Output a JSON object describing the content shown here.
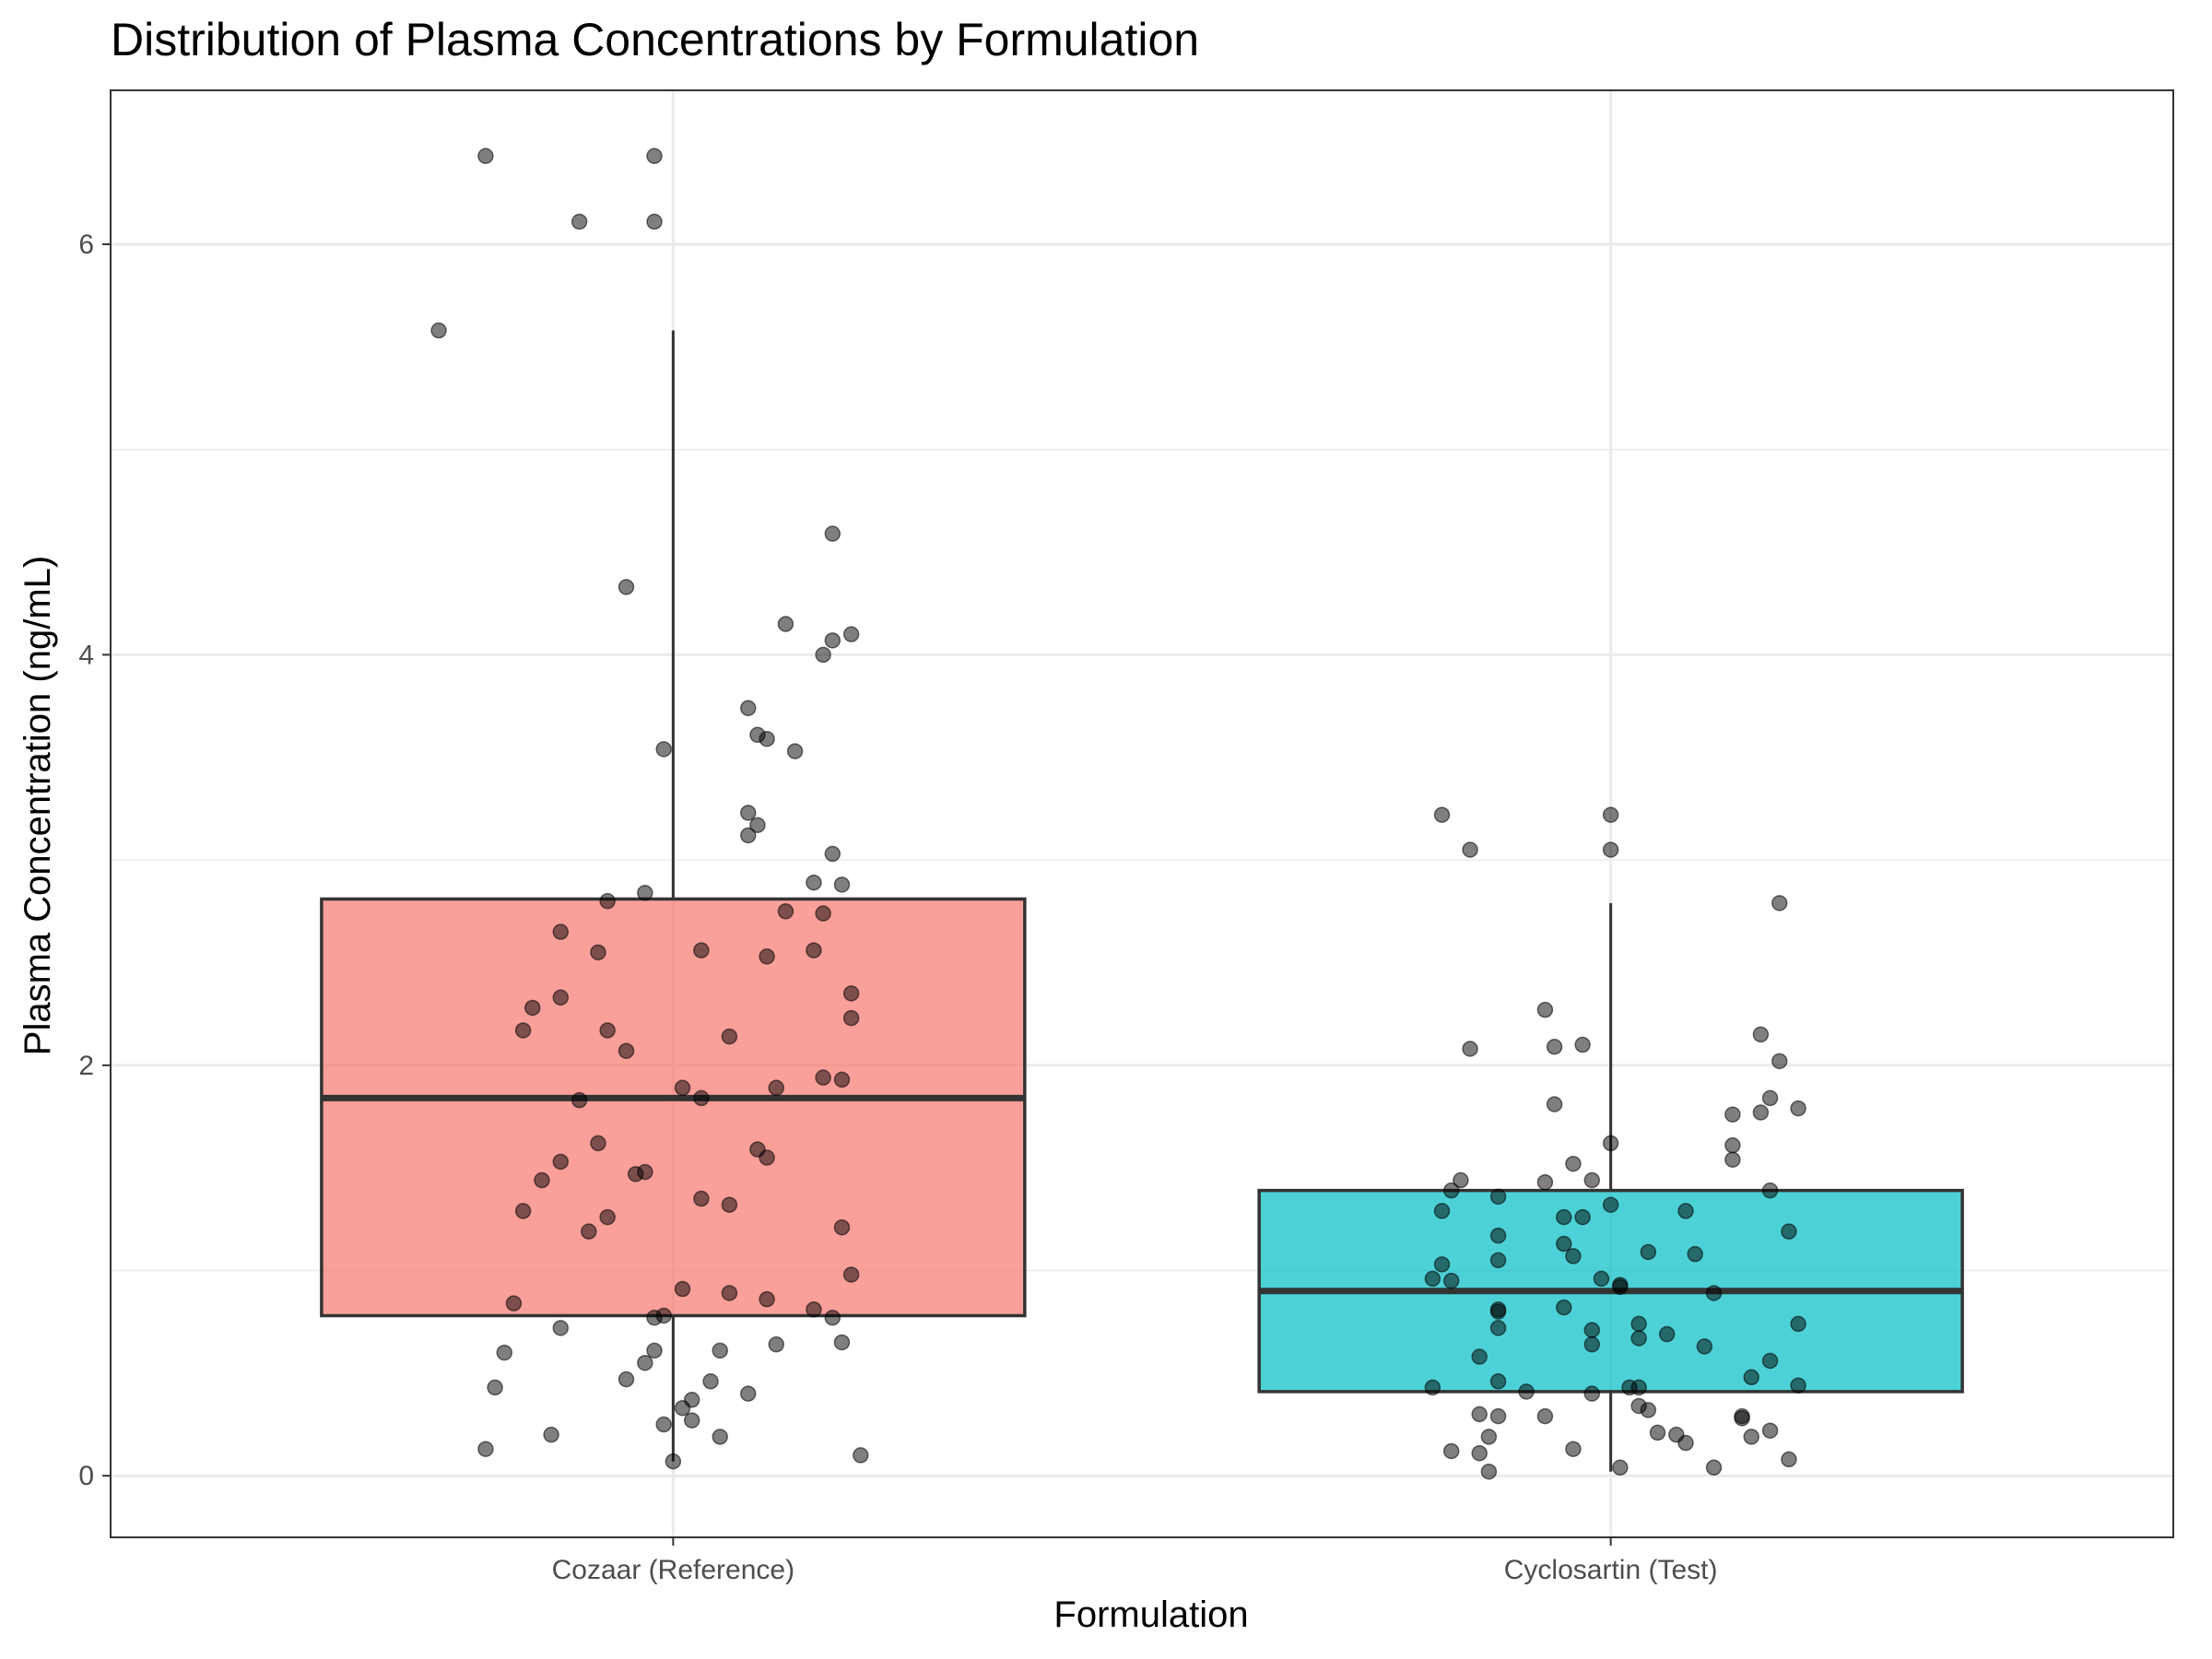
{
  "chart_data": {
    "type": "box",
    "title": "Distribution of Plasma Concentrations by Formulation",
    "xlabel": "Formulation",
    "ylabel": "Plasma Concentration (ng/mL)",
    "ylim": [
      -0.3,
      6.75
    ],
    "yticks": [
      0,
      2,
      4,
      6
    ],
    "grid": true,
    "legend": "none",
    "categories": [
      "Cozaar (Reference)",
      "Cyclosartin (Test)"
    ],
    "series": [
      {
        "color": "#F8766D",
        "q1": 0.78,
        "median": 1.84,
        "q3": 2.81,
        "whisker_low": 0.07,
        "whisker_high": 5.58,
        "points": [
          [
            -0.2,
            6.43
          ],
          [
            -0.02,
            6.43
          ],
          [
            -0.1,
            6.11
          ],
          [
            -0.02,
            6.11
          ],
          [
            -0.25,
            5.58
          ],
          [
            0.17,
            4.59
          ],
          [
            -0.05,
            4.33
          ],
          [
            0.12,
            4.15
          ],
          [
            0.19,
            4.1
          ],
          [
            0.17,
            4.07
          ],
          [
            0.16,
            4.0
          ],
          [
            0.08,
            3.74
          ],
          [
            0.09,
            3.61
          ],
          [
            0.1,
            3.59
          ],
          [
            -0.01,
            3.54
          ],
          [
            0.13,
            3.53
          ],
          [
            0.08,
            3.23
          ],
          [
            0.09,
            3.17
          ],
          [
            0.08,
            3.12
          ],
          [
            0.17,
            3.03
          ],
          [
            0.15,
            2.89
          ],
          [
            0.18,
            2.88
          ],
          [
            -0.03,
            2.84
          ],
          [
            -0.07,
            2.8
          ],
          [
            0.12,
            2.75
          ],
          [
            0.16,
            2.74
          ],
          [
            -0.12,
            2.65
          ],
          [
            0.03,
            2.56
          ],
          [
            0.15,
            2.56
          ],
          [
            -0.08,
            2.55
          ],
          [
            0.1,
            2.53
          ],
          [
            0.19,
            2.35
          ],
          [
            -0.12,
            2.33
          ],
          [
            -0.15,
            2.28
          ],
          [
            0.19,
            2.23
          ],
          [
            -0.16,
            2.17
          ],
          [
            -0.07,
            2.17
          ],
          [
            0.06,
            2.14
          ],
          [
            -0.05,
            2.07
          ],
          [
            0.16,
            1.94
          ],
          [
            0.18,
            1.93
          ],
          [
            0.11,
            1.89
          ],
          [
            0.01,
            1.89
          ],
          [
            -0.1,
            1.83
          ],
          [
            0.03,
            1.84
          ],
          [
            -0.08,
            1.62
          ],
          [
            0.09,
            1.59
          ],
          [
            0.1,
            1.55
          ],
          [
            -0.12,
            1.53
          ],
          [
            -0.03,
            1.48
          ],
          [
            -0.04,
            1.47
          ],
          [
            -0.14,
            1.44
          ],
          [
            0.03,
            1.35
          ],
          [
            0.06,
            1.32
          ],
          [
            -0.16,
            1.29
          ],
          [
            -0.07,
            1.26
          ],
          [
            0.18,
            1.21
          ],
          [
            -0.09,
            1.19
          ],
          [
            0.19,
            0.98
          ],
          [
            0.01,
            0.91
          ],
          [
            0.06,
            0.89
          ],
          [
            0.1,
            0.86
          ],
          [
            -0.17,
            0.84
          ],
          [
            0.15,
            0.81
          ],
          [
            0.17,
            0.77
          ],
          [
            -0.01,
            0.78
          ],
          [
            -0.02,
            0.77
          ],
          [
            -0.12,
            0.72
          ],
          [
            0.11,
            0.64
          ],
          [
            0.18,
            0.65
          ],
          [
            -0.02,
            0.61
          ],
          [
            0.05,
            0.61
          ],
          [
            -0.18,
            0.6
          ],
          [
            -0.03,
            0.55
          ],
          [
            -0.05,
            0.47
          ],
          [
            0.04,
            0.46
          ],
          [
            -0.19,
            0.43
          ],
          [
            0.08,
            0.4
          ],
          [
            0.02,
            0.37
          ],
          [
            0.01,
            0.33
          ],
          [
            0.02,
            0.27
          ],
          [
            -0.01,
            0.25
          ],
          [
            -0.13,
            0.2
          ],
          [
            0.05,
            0.19
          ],
          [
            -0.2,
            0.13
          ],
          [
            0.2,
            0.1
          ],
          [
            0.0,
            0.07
          ]
        ]
      },
      {
        "color": "#00BFC4",
        "q1": 0.41,
        "median": 0.9,
        "q3": 1.39,
        "whisker_low": 0.02,
        "whisker_high": 2.79,
        "points": [
          [
            -0.18,
            3.22
          ],
          [
            0.0,
            3.22
          ],
          [
            -0.15,
            3.05
          ],
          [
            0.0,
            3.05
          ],
          [
            0.18,
            2.79
          ],
          [
            -0.07,
            2.27
          ],
          [
            0.16,
            2.15
          ],
          [
            -0.06,
            2.09
          ],
          [
            -0.15,
            2.08
          ],
          [
            -0.03,
            2.1
          ],
          [
            0.18,
            2.02
          ],
          [
            0.17,
            1.84
          ],
          [
            -0.06,
            1.81
          ],
          [
            0.2,
            1.79
          ],
          [
            0.13,
            1.76
          ],
          [
            0.16,
            1.77
          ],
          [
            0.0,
            1.62
          ],
          [
            0.13,
            1.61
          ],
          [
            -0.04,
            1.52
          ],
          [
            0.13,
            1.54
          ],
          [
            -0.16,
            1.44
          ],
          [
            -0.07,
            1.43
          ],
          [
            -0.02,
            1.44
          ],
          [
            -0.17,
            1.39
          ],
          [
            0.17,
            1.39
          ],
          [
            -0.12,
            1.36
          ],
          [
            0.0,
            1.32
          ],
          [
            -0.18,
            1.29
          ],
          [
            0.08,
            1.29
          ],
          [
            -0.05,
            1.26
          ],
          [
            -0.03,
            1.26
          ],
          [
            0.19,
            1.19
          ],
          [
            -0.12,
            1.17
          ],
          [
            -0.05,
            1.13
          ],
          [
            0.04,
            1.09
          ],
          [
            0.09,
            1.08
          ],
          [
            -0.04,
            1.07
          ],
          [
            -0.12,
            1.05
          ],
          [
            -0.18,
            1.03
          ],
          [
            -0.19,
            0.96
          ],
          [
            -0.17,
            0.95
          ],
          [
            -0.01,
            0.96
          ],
          [
            0.01,
            0.93
          ],
          [
            0.01,
            0.92
          ],
          [
            0.11,
            0.89
          ],
          [
            -0.05,
            0.82
          ],
          [
            -0.12,
            0.8
          ],
          [
            -0.12,
            0.81
          ],
          [
            0.03,
            0.74
          ],
          [
            0.2,
            0.74
          ],
          [
            -0.12,
            0.72
          ],
          [
            -0.02,
            0.71
          ],
          [
            0.06,
            0.69
          ],
          [
            0.03,
            0.67
          ],
          [
            -0.02,
            0.64
          ],
          [
            0.1,
            0.63
          ],
          [
            -0.14,
            0.58
          ],
          [
            0.17,
            0.56
          ],
          [
            0.15,
            0.48
          ],
          [
            -0.12,
            0.46
          ],
          [
            0.2,
            0.44
          ],
          [
            -0.19,
            0.43
          ],
          [
            0.02,
            0.43
          ],
          [
            0.03,
            0.43
          ],
          [
            -0.09,
            0.41
          ],
          [
            -0.02,
            0.4
          ],
          [
            0.03,
            0.34
          ],
          [
            0.04,
            0.32
          ],
          [
            -0.14,
            0.3
          ],
          [
            -0.12,
            0.29
          ],
          [
            -0.07,
            0.29
          ],
          [
            0.14,
            0.29
          ],
          [
            0.14,
            0.28
          ],
          [
            0.05,
            0.21
          ],
          [
            0.07,
            0.2
          ],
          [
            0.17,
            0.22
          ],
          [
            0.15,
            0.19
          ],
          [
            -0.13,
            0.19
          ],
          [
            0.08,
            0.16
          ],
          [
            -0.17,
            0.12
          ],
          [
            -0.14,
            0.11
          ],
          [
            -0.04,
            0.13
          ],
          [
            0.19,
            0.08
          ],
          [
            0.01,
            0.04
          ],
          [
            0.11,
            0.04
          ],
          [
            -0.13,
            0.02
          ]
        ]
      }
    ]
  }
}
